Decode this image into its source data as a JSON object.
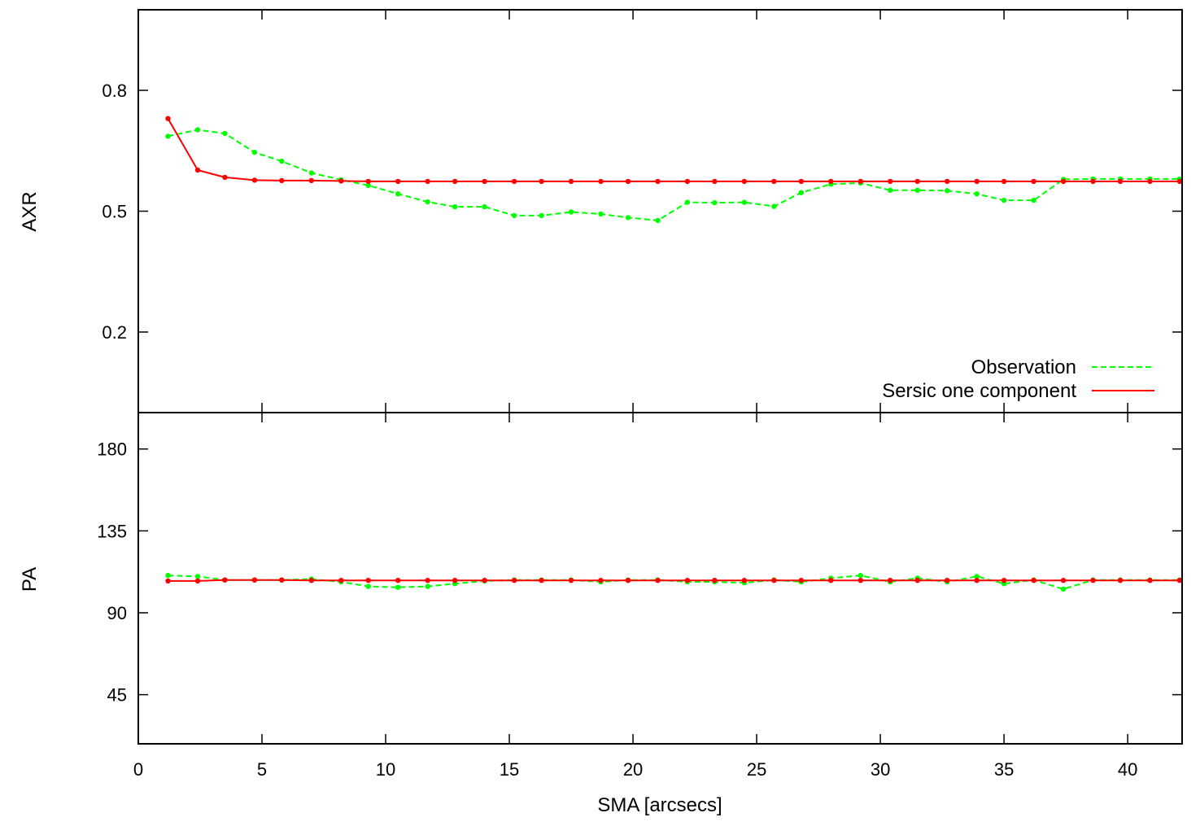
{
  "chart_data": [
    {
      "type": "line",
      "ylabel": "AXR",
      "xlim": [
        0,
        42.2
      ],
      "ylim": [
        0.0,
        1.0
      ],
      "yticks": [
        0.2,
        0.5,
        0.8
      ],
      "ytick_labels": [
        "0.2",
        "0.5",
        "0.8"
      ],
      "legend": {
        "placement": "bottom-right"
      },
      "grid": false,
      "series": [
        {
          "name": "Observation",
          "color": "#00ff00",
          "style": "dashed",
          "points": [
            [
              1.2,
              0.686
            ],
            [
              2.4,
              0.702
            ],
            [
              3.5,
              0.693
            ],
            [
              4.7,
              0.646
            ],
            [
              5.8,
              0.624
            ],
            [
              7.0,
              0.595
            ],
            [
              8.2,
              0.578
            ],
            [
              9.3,
              0.564
            ],
            [
              10.5,
              0.543
            ],
            [
              11.7,
              0.523
            ],
            [
              12.8,
              0.511
            ],
            [
              14.0,
              0.511
            ],
            [
              15.2,
              0.489
            ],
            [
              16.3,
              0.489
            ],
            [
              17.5,
              0.498
            ],
            [
              18.7,
              0.493
            ],
            [
              19.8,
              0.484
            ],
            [
              21.0,
              0.477
            ],
            [
              22.2,
              0.522
            ],
            [
              23.3,
              0.521
            ],
            [
              24.5,
              0.522
            ],
            [
              25.7,
              0.512
            ],
            [
              26.8,
              0.546
            ],
            [
              28.0,
              0.567
            ],
            [
              29.2,
              0.57
            ],
            [
              30.4,
              0.552
            ],
            [
              31.5,
              0.552
            ],
            [
              32.7,
              0.551
            ],
            [
              33.9,
              0.543
            ],
            [
              35.0,
              0.527
            ],
            [
              36.2,
              0.527
            ],
            [
              37.4,
              0.579
            ],
            [
              38.6,
              0.58
            ],
            [
              39.7,
              0.58
            ],
            [
              40.9,
              0.58
            ],
            [
              42.1,
              0.58
            ]
          ]
        },
        {
          "name": "Sersic one component",
          "color": "#ff0000",
          "style": "solid",
          "points": [
            [
              1.2,
              0.73
            ],
            [
              2.4,
              0.602
            ],
            [
              3.5,
              0.584
            ],
            [
              4.7,
              0.577
            ],
            [
              5.8,
              0.576
            ],
            [
              7.0,
              0.576
            ],
            [
              8.2,
              0.575
            ],
            [
              9.3,
              0.574
            ],
            [
              10.5,
              0.574
            ],
            [
              11.7,
              0.574
            ],
            [
              12.8,
              0.574
            ],
            [
              14.0,
              0.574
            ],
            [
              15.2,
              0.574
            ],
            [
              16.3,
              0.574
            ],
            [
              17.5,
              0.574
            ],
            [
              18.7,
              0.574
            ],
            [
              19.8,
              0.574
            ],
            [
              21.0,
              0.574
            ],
            [
              22.2,
              0.574
            ],
            [
              23.3,
              0.574
            ],
            [
              24.5,
              0.574
            ],
            [
              25.7,
              0.574
            ],
            [
              26.8,
              0.574
            ],
            [
              28.0,
              0.574
            ],
            [
              29.2,
              0.574
            ],
            [
              30.4,
              0.574
            ],
            [
              31.5,
              0.574
            ],
            [
              32.7,
              0.574
            ],
            [
              33.9,
              0.574
            ],
            [
              35.0,
              0.574
            ],
            [
              36.2,
              0.574
            ],
            [
              37.4,
              0.574
            ],
            [
              38.6,
              0.574
            ],
            [
              39.7,
              0.574
            ],
            [
              40.9,
              0.574
            ],
            [
              42.1,
              0.574
            ]
          ]
        }
      ]
    },
    {
      "type": "line",
      "xlabel": "SMA [arcsecs]",
      "ylabel": "PA",
      "xlim": [
        0,
        42.2
      ],
      "ylim": [
        18,
        200
      ],
      "xticks": [
        0,
        5,
        10,
        15,
        20,
        25,
        30,
        35,
        40
      ],
      "xtick_labels": [
        "0",
        "5",
        "10",
        "15",
        "20",
        "25",
        "30",
        "35",
        "40"
      ],
      "yticks": [
        45,
        90,
        135,
        180
      ],
      "ytick_labels": [
        "45",
        "90",
        "135",
        "180"
      ],
      "grid": false,
      "series": [
        {
          "name": "Observation",
          "color": "#00ff00",
          "style": "dashed",
          "points": [
            [
              1.2,
              110.5
            ],
            [
              2.4,
              110.0
            ],
            [
              3.5,
              108.0
            ],
            [
              4.7,
              108.0
            ],
            [
              5.8,
              108.0
            ],
            [
              7.0,
              108.5
            ],
            [
              8.2,
              107.0
            ],
            [
              9.3,
              104.5
            ],
            [
              10.5,
              104.0
            ],
            [
              11.7,
              104.5
            ],
            [
              12.8,
              106.0
            ],
            [
              14.0,
              107.5
            ],
            [
              15.2,
              108.0
            ],
            [
              16.3,
              108.0
            ],
            [
              17.5,
              108.0
            ],
            [
              18.7,
              107.0
            ],
            [
              19.8,
              108.0
            ],
            [
              21.0,
              108.0
            ],
            [
              22.2,
              107.0
            ],
            [
              23.3,
              107.0
            ],
            [
              24.5,
              106.5
            ],
            [
              25.7,
              108.0
            ],
            [
              26.8,
              107.0
            ],
            [
              28.0,
              109.0
            ],
            [
              29.2,
              110.5
            ],
            [
              30.4,
              107.0
            ],
            [
              31.5,
              109.0
            ],
            [
              32.7,
              107.0
            ],
            [
              33.9,
              110.0
            ],
            [
              35.0,
              106.0
            ],
            [
              36.2,
              108.0
            ],
            [
              37.4,
              103.0
            ],
            [
              38.6,
              108.0
            ],
            [
              39.7,
              108.0
            ],
            [
              40.9,
              108.0
            ],
            [
              42.1,
              108.0
            ]
          ]
        },
        {
          "name": "Sersic one component",
          "color": "#ff0000",
          "style": "solid",
          "points": [
            [
              1.2,
              107.5
            ],
            [
              2.4,
              107.5
            ],
            [
              3.5,
              108.0
            ],
            [
              4.7,
              108.0
            ],
            [
              5.8,
              108.0
            ],
            [
              7.0,
              107.8
            ],
            [
              8.2,
              107.8
            ],
            [
              9.3,
              107.8
            ],
            [
              10.5,
              107.8
            ],
            [
              11.7,
              107.8
            ],
            [
              12.8,
              107.8
            ],
            [
              14.0,
              107.8
            ],
            [
              15.2,
              107.8
            ],
            [
              16.3,
              107.8
            ],
            [
              17.5,
              107.8
            ],
            [
              18.7,
              107.8
            ],
            [
              19.8,
              107.8
            ],
            [
              21.0,
              107.8
            ],
            [
              22.2,
              107.8
            ],
            [
              23.3,
              107.8
            ],
            [
              24.5,
              107.8
            ],
            [
              25.7,
              107.8
            ],
            [
              26.8,
              107.8
            ],
            [
              28.0,
              107.8
            ],
            [
              29.2,
              107.8
            ],
            [
              30.4,
              107.8
            ],
            [
              31.5,
              107.8
            ],
            [
              32.7,
              107.8
            ],
            [
              33.9,
              107.8
            ],
            [
              35.0,
              107.8
            ],
            [
              36.2,
              107.8
            ],
            [
              37.4,
              107.8
            ],
            [
              38.6,
              107.8
            ],
            [
              39.7,
              107.8
            ],
            [
              40.9,
              107.8
            ],
            [
              42.1,
              107.8
            ]
          ]
        }
      ]
    }
  ]
}
